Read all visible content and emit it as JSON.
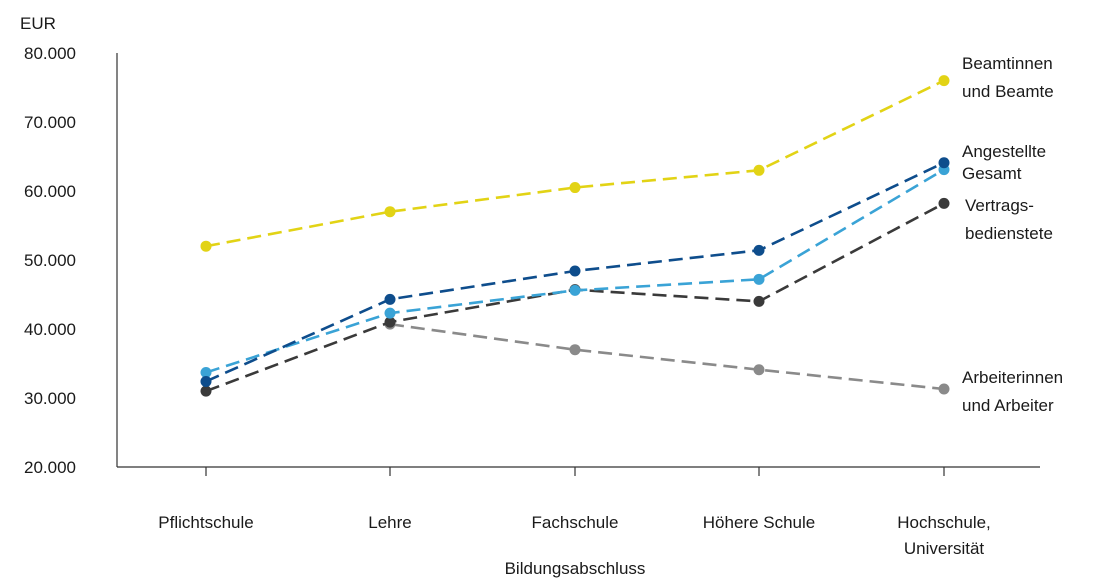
{
  "chart_data": {
    "type": "line",
    "title": "",
    "xlabel": "Bildungsabschluss",
    "ylabel": "EUR",
    "ylim": [
      20000,
      80000
    ],
    "yticks": [
      20000,
      30000,
      40000,
      50000,
      60000,
      70000,
      80000
    ],
    "ytick_labels": [
      "20.000",
      "30.000",
      "40.000",
      "50.000",
      "60.000",
      "70.000",
      "80.000"
    ],
    "grid": false,
    "categories": [
      [
        "Pflichtschule"
      ],
      [
        "Lehre"
      ],
      [
        "Fachschule"
      ],
      [
        "Höhere Schule"
      ],
      [
        "Hochschule,",
        "Universität"
      ]
    ],
    "series": [
      {
        "name": [
          "Beamtinnen",
          "und Beamte"
        ],
        "color": "#e2d315",
        "values": [
          52000,
          57000,
          60500,
          63000,
          76000
        ]
      },
      {
        "name": [
          "Angestellte"
        ],
        "color": "#0e4d8c",
        "values": [
          32400,
          44300,
          48400,
          51400,
          64100
        ]
      },
      {
        "name": [
          "Gesamt"
        ],
        "color": "#3aa3d6",
        "values": [
          33700,
          42300,
          45600,
          47200,
          63100
        ]
      },
      {
        "name": [
          "Vertrags-",
          "bedienstete"
        ],
        "color": "#3a3a3a",
        "values": [
          31000,
          41000,
          45700,
          44000,
          58200
        ]
      },
      {
        "name": [
          "Arbeiterinnen",
          "und Arbeiter"
        ],
        "color": "#8a8a8a",
        "values": [
          null,
          40700,
          37000,
          34100,
          31300
        ]
      }
    ]
  }
}
